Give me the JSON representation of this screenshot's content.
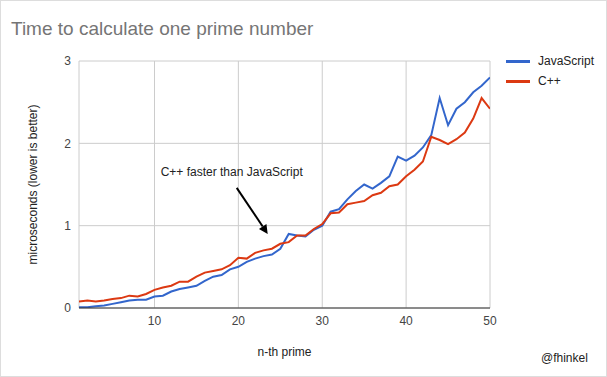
{
  "chart_data": {
    "type": "line",
    "title": "Time to calculate one prime number",
    "x_label": "n-th prime",
    "y_label": "microseconds (lower is better)",
    "x": [
      1,
      2,
      3,
      4,
      5,
      6,
      7,
      8,
      9,
      10,
      11,
      12,
      13,
      14,
      15,
      16,
      17,
      18,
      19,
      20,
      21,
      22,
      23,
      24,
      25,
      26,
      27,
      28,
      29,
      30,
      31,
      32,
      33,
      34,
      35,
      36,
      37,
      38,
      39,
      40,
      41,
      42,
      43,
      44,
      45,
      46,
      47,
      48,
      49,
      50
    ],
    "series": [
      {
        "name": "JavaScript",
        "color": "#3366cc",
        "values": [
          0.01,
          0.01,
          0.02,
          0.03,
          0.05,
          0.07,
          0.09,
          0.1,
          0.1,
          0.14,
          0.15,
          0.2,
          0.23,
          0.25,
          0.27,
          0.33,
          0.38,
          0.4,
          0.47,
          0.5,
          0.56,
          0.6,
          0.63,
          0.65,
          0.72,
          0.9,
          0.88,
          0.87,
          0.95,
          1.0,
          1.17,
          1.2,
          1.32,
          1.42,
          1.5,
          1.45,
          1.52,
          1.6,
          1.84,
          1.79,
          1.85,
          1.95,
          2.1,
          2.55,
          2.22,
          2.42,
          2.5,
          2.62,
          2.7,
          2.8
        ]
      },
      {
        "name": "C++",
        "color": "#dc3912",
        "values": [
          0.08,
          0.09,
          0.08,
          0.09,
          0.11,
          0.12,
          0.15,
          0.14,
          0.17,
          0.22,
          0.25,
          0.27,
          0.32,
          0.32,
          0.38,
          0.43,
          0.45,
          0.47,
          0.52,
          0.61,
          0.6,
          0.67,
          0.7,
          0.72,
          0.78,
          0.8,
          0.88,
          0.88,
          0.96,
          1.02,
          1.15,
          1.16,
          1.26,
          1.28,
          1.3,
          1.37,
          1.4,
          1.48,
          1.5,
          1.6,
          1.68,
          1.78,
          2.08,
          2.04,
          1.99,
          2.05,
          2.13,
          2.3,
          2.55,
          2.42
        ]
      }
    ],
    "xlim": [
      1,
      50
    ],
    "xticks": [
      10,
      20,
      30,
      40,
      50
    ],
    "ylim": [
      0,
      3
    ],
    "yticks": [
      0,
      1,
      2,
      3
    ],
    "grid": true,
    "legend": "right",
    "annotations": [
      {
        "text": "C++ faster than JavaScript",
        "x": 23.5,
        "y": 0.9
      }
    ],
    "credit": "@fhinkel"
  }
}
